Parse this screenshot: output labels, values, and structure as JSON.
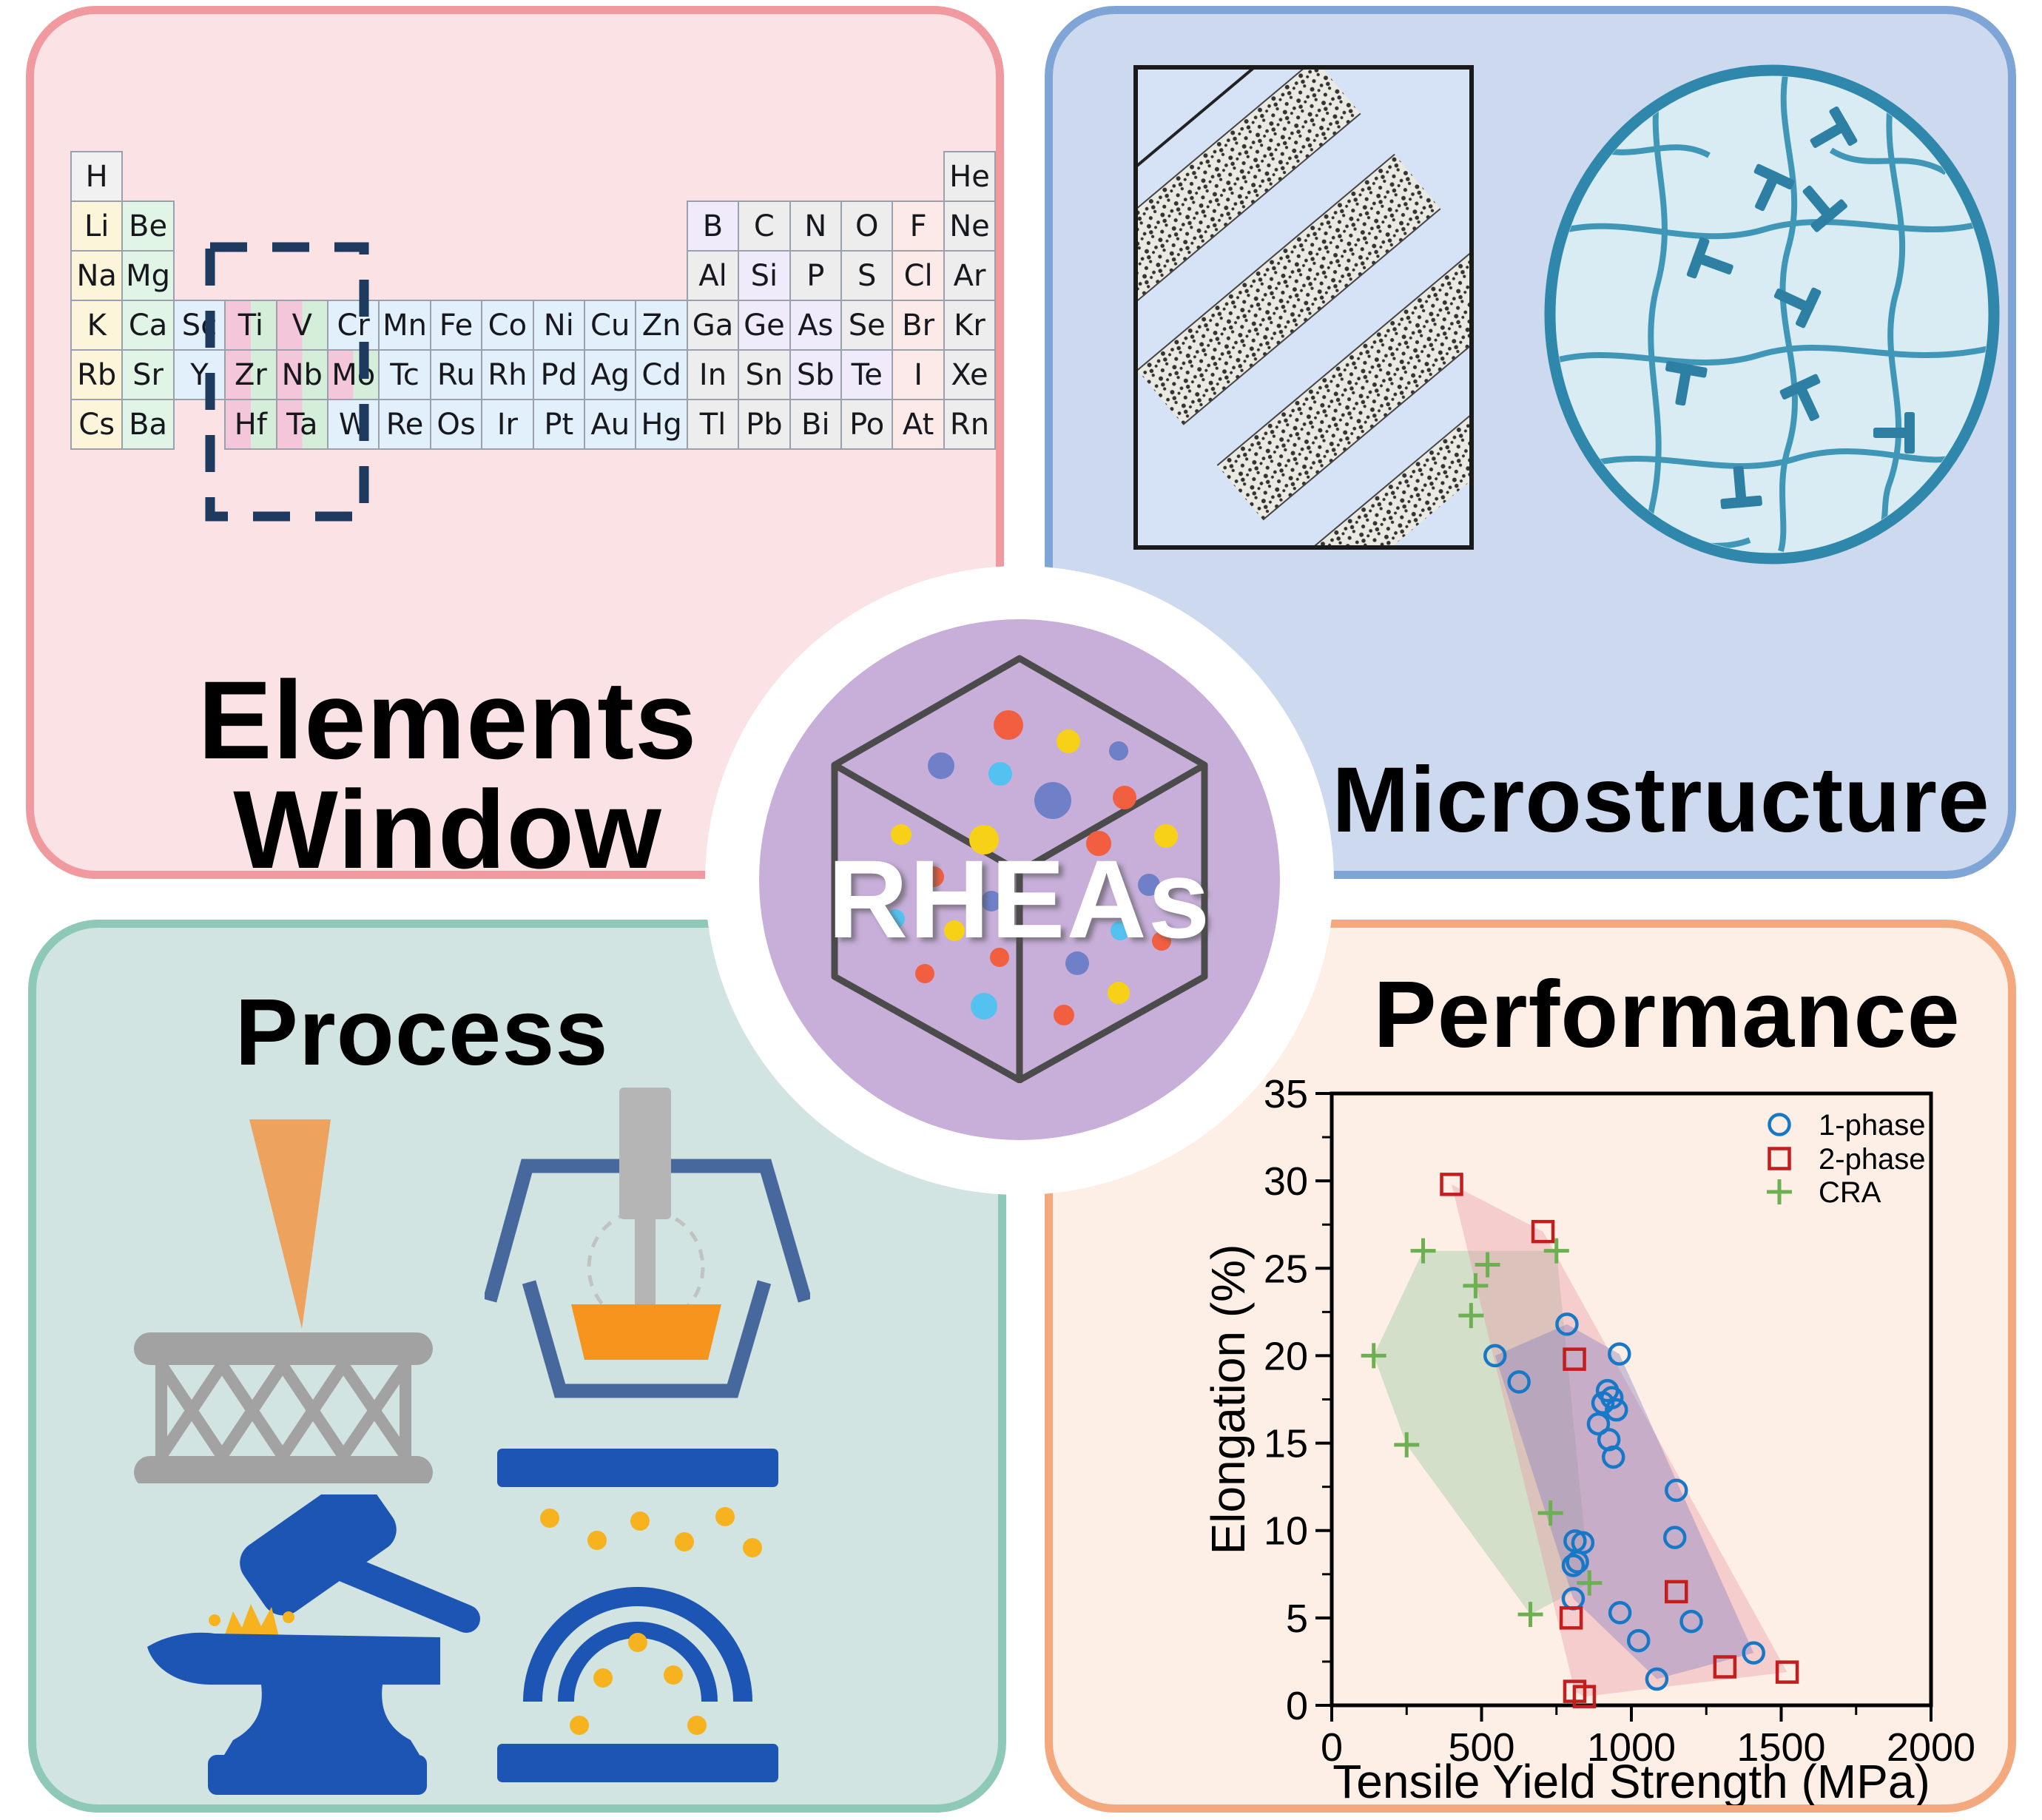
{
  "cards": {
    "elements": {
      "title_line1": "Elements",
      "title_line2": "Window",
      "bg": "#fae2e5",
      "border": "#f09aa0"
    },
    "microstructure": {
      "title": "Microstructure",
      "bg": "#cdd9ef",
      "border": "#7fa5d6"
    },
    "process": {
      "title": "Process",
      "bg": "#d1e4e1",
      "border": "#8ec8b6"
    },
    "performance": {
      "title": "Performance",
      "bg": "#fdefe6",
      "border": "#f4a87d"
    }
  },
  "center": {
    "label": "RHEAs",
    "ring_color": "#ffffff",
    "disc_color": "#c7afd9",
    "cube_stroke": "#4b4b4b",
    "dot_colors": {
      "red": "#f15f40",
      "yellow": "#f7d117",
      "purple": "#7080c8",
      "blue": "#54c2f0"
    },
    "dots": [
      [
        240,
        96,
        20,
        "red"
      ],
      [
        321,
        118,
        16,
        "yellow"
      ],
      [
        389,
        131,
        13,
        "purple"
      ],
      [
        149,
        151,
        18,
        "purple"
      ],
      [
        229,
        162,
        16,
        "blue"
      ],
      [
        300,
        198,
        25,
        "purple"
      ],
      [
        397,
        194,
        16,
        "red"
      ],
      [
        95,
        244,
        14,
        "yellow"
      ],
      [
        207,
        251,
        20,
        "yellow"
      ],
      [
        362,
        256,
        17,
        "red"
      ],
      [
        453,
        246,
        16,
        "yellow"
      ],
      [
        139,
        301,
        14,
        "red"
      ],
      [
        217,
        334,
        14,
        "purple"
      ],
      [
        430,
        312,
        15,
        "purple"
      ],
      [
        87,
        358,
        13,
        "blue"
      ],
      [
        167,
        374,
        14,
        "yellow"
      ],
      [
        228,
        410,
        13,
        "red"
      ],
      [
        391,
        374,
        13,
        "blue"
      ],
      [
        447,
        388,
        13,
        "red"
      ],
      [
        333,
        418,
        16,
        "purple"
      ],
      [
        127,
        432,
        13,
        "red"
      ],
      [
        389,
        458,
        15,
        "yellow"
      ],
      [
        207,
        476,
        18,
        "blue"
      ],
      [
        315,
        488,
        14,
        "red"
      ]
    ]
  },
  "periodic_table": {
    "category_colors": {
      "hyd": "#f1f1f1",
      "alk": "#fcf5da",
      "ae": "#e1f5e7",
      "tm": "#e2f0fb",
      "post": "#ededed",
      "met": "#f0ebfb",
      "nm": "#ededed",
      "hal": "#fceae8",
      "noble": "#ededed"
    },
    "highlight_split": [
      "#f4c6da",
      "#d4eeda"
    ],
    "highlighted_elements": [
      "Ti",
      "V",
      "Zr",
      "Nb",
      "Mo",
      "Hf",
      "Ta"
    ],
    "dashed_box_color": "#1e3a5f",
    "cells": [
      [
        "H",
        1,
        1,
        "hyd"
      ],
      [
        "He",
        1,
        18,
        "noble"
      ],
      [
        "Li",
        2,
        1,
        "alk"
      ],
      [
        "Be",
        2,
        2,
        "ae"
      ],
      [
        "B",
        2,
        13,
        "met"
      ],
      [
        "C",
        2,
        14,
        "nm"
      ],
      [
        "N",
        2,
        15,
        "nm"
      ],
      [
        "O",
        2,
        16,
        "nm"
      ],
      [
        "F",
        2,
        17,
        "hal"
      ],
      [
        "Ne",
        2,
        18,
        "noble"
      ],
      [
        "Na",
        3,
        1,
        "alk"
      ],
      [
        "Mg",
        3,
        2,
        "ae"
      ],
      [
        "Al",
        3,
        13,
        "post"
      ],
      [
        "Si",
        3,
        14,
        "met"
      ],
      [
        "P",
        3,
        15,
        "nm"
      ],
      [
        "S",
        3,
        16,
        "nm"
      ],
      [
        "Cl",
        3,
        17,
        "hal"
      ],
      [
        "Ar",
        3,
        18,
        "noble"
      ],
      [
        "K",
        4,
        1,
        "alk"
      ],
      [
        "Ca",
        4,
        2,
        "ae"
      ],
      [
        "Sc",
        4,
        3,
        "tm"
      ],
      [
        "Ti",
        4,
        4,
        "ref"
      ],
      [
        "V",
        4,
        5,
        "ref"
      ],
      [
        "Cr",
        4,
        6,
        "tm"
      ],
      [
        "Mn",
        4,
        7,
        "tm"
      ],
      [
        "Fe",
        4,
        8,
        "tm"
      ],
      [
        "Co",
        4,
        9,
        "tm"
      ],
      [
        "Ni",
        4,
        10,
        "tm"
      ],
      [
        "Cu",
        4,
        11,
        "tm"
      ],
      [
        "Zn",
        4,
        12,
        "tm"
      ],
      [
        "Ga",
        4,
        13,
        "post"
      ],
      [
        "Ge",
        4,
        14,
        "met"
      ],
      [
        "As",
        4,
        15,
        "met"
      ],
      [
        "Se",
        4,
        16,
        "nm"
      ],
      [
        "Br",
        4,
        17,
        "hal"
      ],
      [
        "Kr",
        4,
        18,
        "noble"
      ],
      [
        "Rb",
        5,
        1,
        "alk"
      ],
      [
        "Sr",
        5,
        2,
        "ae"
      ],
      [
        "Y",
        5,
        3,
        "tm"
      ],
      [
        "Zr",
        5,
        4,
        "ref"
      ],
      [
        "Nb",
        5,
        5,
        "ref"
      ],
      [
        "Mo",
        5,
        6,
        "ref"
      ],
      [
        "Tc",
        5,
        7,
        "tm"
      ],
      [
        "Ru",
        5,
        8,
        "tm"
      ],
      [
        "Rh",
        5,
        9,
        "tm"
      ],
      [
        "Pd",
        5,
        10,
        "tm"
      ],
      [
        "Ag",
        5,
        11,
        "tm"
      ],
      [
        "Cd",
        5,
        12,
        "tm"
      ],
      [
        "In",
        5,
        13,
        "post"
      ],
      [
        "Sn",
        5,
        14,
        "post"
      ],
      [
        "Sb",
        5,
        15,
        "met"
      ],
      [
        "Te",
        5,
        16,
        "met"
      ],
      [
        "I",
        5,
        17,
        "hal"
      ],
      [
        "Xe",
        5,
        18,
        "noble"
      ],
      [
        "Cs",
        6,
        1,
        "alk"
      ],
      [
        "Ba",
        6,
        2,
        "ae"
      ],
      [
        "Hf",
        6,
        4,
        "ref"
      ],
      [
        "Ta",
        6,
        5,
        "ref"
      ],
      [
        "W",
        6,
        6,
        "tm"
      ],
      [
        "Re",
        6,
        7,
        "tm"
      ],
      [
        "Os",
        6,
        8,
        "tm"
      ],
      [
        "Ir",
        6,
        9,
        "tm"
      ],
      [
        "Pt",
        6,
        10,
        "tm"
      ],
      [
        "Au",
        6,
        11,
        "tm"
      ],
      [
        "Hg",
        6,
        12,
        "tm"
      ],
      [
        "Tl",
        6,
        13,
        "post"
      ],
      [
        "Pb",
        6,
        14,
        "post"
      ],
      [
        "Bi",
        6,
        15,
        "post"
      ],
      [
        "Po",
        6,
        16,
        "post"
      ],
      [
        "At",
        6,
        17,
        "hal"
      ],
      [
        "Rn",
        6,
        18,
        "noble"
      ]
    ]
  },
  "microstructure_panel": {
    "icons": [
      "lamellar-micrograph-icon",
      "grain-dislocation-icon"
    ],
    "grain_tees": [
      [
        305,
        171,
        25
      ],
      [
        375,
        192,
        140
      ],
      [
        228,
        270,
        -70
      ],
      [
        342,
        323,
        115
      ],
      [
        191,
        433,
        10
      ],
      [
        356,
        455,
        -25
      ],
      [
        267,
        575,
        175
      ],
      [
        477,
        500,
        90
      ],
      [
        390,
        95,
        60
      ]
    ],
    "tee_color": "#2d7fa3",
    "grain_line_color": "#3f96b6",
    "grain_fill": "#d9ecf3",
    "grain_border": "#2f88ab"
  },
  "process_panel": {
    "icons": [
      "additive-manufacturing-icon",
      "vacuum-melting-icon",
      "forging-icon",
      "spark-plasma-sintering-icon"
    ],
    "accent_blue": "#1c55b3",
    "steel_blue": "#46689c",
    "gray": "#a2a2a2",
    "orange_beam": "#eda25e",
    "orange_melt": "#f7941d",
    "spark_yellow": "#f6b31f"
  },
  "chart_data": {
    "type": "scatter",
    "title": "",
    "xlabel": "Tensile Yield Strength (MPa)",
    "ylabel": "Elongation (%)",
    "xlim": [
      0,
      2000
    ],
    "ylim": [
      0,
      35
    ],
    "xticks": [
      0,
      500,
      1000,
      1500,
      2000
    ],
    "yticks": [
      0,
      5,
      10,
      15,
      20,
      25,
      30,
      35
    ],
    "grid": false,
    "legend_position": "upper right",
    "series": [
      {
        "name": "1-phase",
        "marker": "circle",
        "color": "#1778c8",
        "hull_fill": "rgba(136,128,190,0.42)",
        "points": [
          [
            545,
            20.0
          ],
          [
            625,
            18.5
          ],
          [
            785,
            21.8
          ],
          [
            960,
            20.1
          ],
          [
            890,
            16.1
          ],
          [
            905,
            17.3
          ],
          [
            920,
            18.0
          ],
          [
            935,
            17.6
          ],
          [
            950,
            16.9
          ],
          [
            925,
            15.2
          ],
          [
            940,
            14.2
          ],
          [
            1150,
            12.3
          ],
          [
            1145,
            9.6
          ],
          [
            812,
            9.4
          ],
          [
            838,
            9.3
          ],
          [
            820,
            8.2
          ],
          [
            806,
            6.1
          ],
          [
            962,
            5.3
          ],
          [
            1024,
            3.7
          ],
          [
            1085,
            1.5
          ],
          [
            1200,
            4.8
          ],
          [
            1408,
            3.0
          ],
          [
            806,
            8.0
          ]
        ]
      },
      {
        "name": "2-phase",
        "marker": "square",
        "color": "#c41d1d",
        "hull_fill": "rgba(232,150,166,0.38)",
        "points": [
          [
            400,
            29.8
          ],
          [
            705,
            27.1
          ],
          [
            810,
            19.8
          ],
          [
            1150,
            6.5
          ],
          [
            799,
            5.0
          ],
          [
            811,
            0.8
          ],
          [
            843,
            0.5
          ],
          [
            1312,
            2.2
          ],
          [
            1520,
            1.9
          ]
        ]
      },
      {
        "name": "CRA",
        "marker": "plus",
        "color": "#6cb052",
        "hull_fill": "rgba(141,197,156,0.38)",
        "points": [
          [
            140,
            20.0
          ],
          [
            250,
            14.9
          ],
          [
            305,
            26.0
          ],
          [
            465,
            22.3
          ],
          [
            480,
            24.0
          ],
          [
            520,
            25.2
          ],
          [
            750,
            26.0
          ],
          [
            730,
            11.0
          ],
          [
            860,
            7.0
          ],
          [
            663,
            5.2
          ]
        ]
      }
    ]
  }
}
